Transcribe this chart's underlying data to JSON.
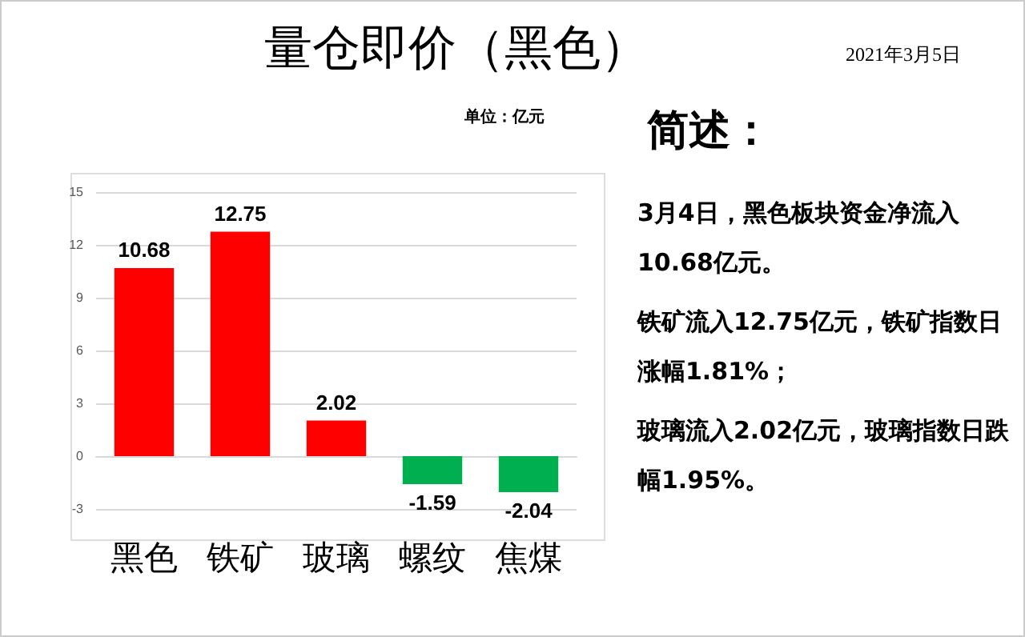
{
  "chart_data": {
    "type": "bar",
    "title": "量仓即价（黑色）",
    "subtitle": "单位：亿元",
    "categories": [
      "黑色",
      "铁矿",
      "玻璃",
      "螺纹",
      "焦煤"
    ],
    "values": [
      10.68,
      12.75,
      2.02,
      -1.59,
      -2.04
    ],
    "colors": [
      "#ff0000",
      "#ff0000",
      "#ff0000",
      "#00b050",
      "#00b050"
    ],
    "ylim": [
      -3,
      15
    ],
    "yticks": [
      -3,
      0,
      3,
      6,
      9,
      12,
      15
    ],
    "grid": "y",
    "data_labels": true,
    "annotations": [
      "2021年3月5日",
      "简述：",
      "3月4日，黑色板块资金净流入10.68亿元。",
      "铁矿流入12.75亿元，铁矿指数日涨幅1.81%；",
      "玻璃流入2.02亿元，玻璃指数日跌幅1.95%。"
    ]
  }
}
